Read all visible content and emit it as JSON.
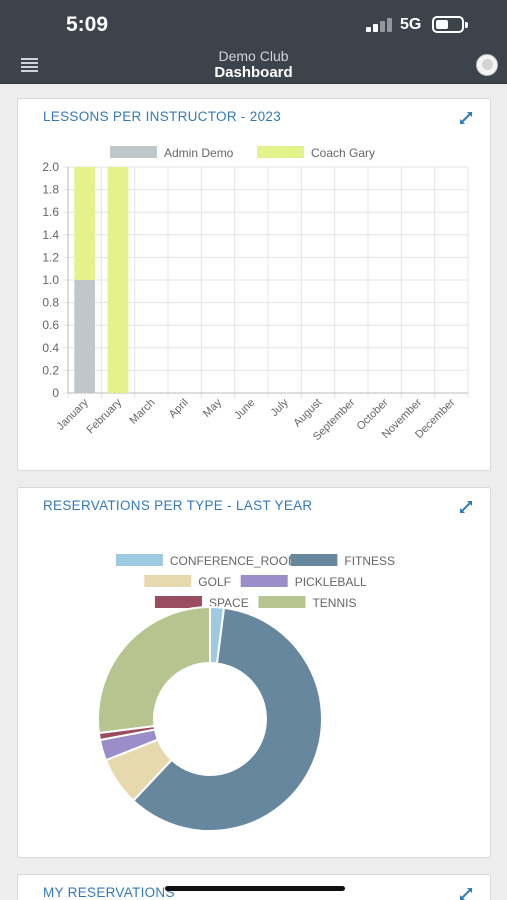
{
  "status": {
    "time": "5:09",
    "network": "5G"
  },
  "nav": {
    "subtitle": "Demo Club",
    "title": "Dashboard"
  },
  "cards": {
    "lessons": {
      "title": "LESSONS PER INSTRUCTOR - 2023"
    },
    "reservations": {
      "title": "RESERVATIONS PER TYPE - LAST YEAR"
    },
    "my_reservations": {
      "title": "MY RESERVATIONS"
    }
  },
  "chart_data": [
    {
      "type": "bar",
      "stacked": true,
      "categories": [
        "January",
        "February",
        "March",
        "April",
        "May",
        "June",
        "July",
        "August",
        "September",
        "October",
        "November",
        "December"
      ],
      "series": [
        {
          "name": "Admin Demo",
          "color": "#bfc7cb",
          "values": [
            1,
            0,
            0,
            0,
            0,
            0,
            0,
            0,
            0,
            0,
            0,
            0
          ]
        },
        {
          "name": "Coach  Gary",
          "color": "#e3f28a",
          "values": [
            1,
            2,
            0,
            0,
            0,
            0,
            0,
            0,
            0,
            0,
            0,
            0
          ]
        }
      ],
      "yticks": [
        "0",
        "0.2",
        "0.4",
        "0.6",
        "0.8",
        "1.0",
        "1.2",
        "1.4",
        "1.6",
        "1.8",
        "2.0"
      ],
      "ylim": [
        0,
        2
      ],
      "legend": "top",
      "grid": true
    },
    {
      "type": "pie",
      "donut": true,
      "legend": "top",
      "slices": [
        {
          "label": "CONFERENCE_ROOM",
          "value": 2,
          "color": "#9ecae1"
        },
        {
          "label": "FITNESS",
          "value": 60,
          "color": "#66879e"
        },
        {
          "label": "GOLF",
          "value": 7,
          "color": "#e6d9ad"
        },
        {
          "label": "PICKLEBALL",
          "value": 3,
          "color": "#9b8dc9"
        },
        {
          "label": "SPACE",
          "value": 1,
          "color": "#9a4d5e"
        },
        {
          "label": "TENNIS",
          "value": 27,
          "color": "#b8c48f"
        }
      ]
    }
  ]
}
